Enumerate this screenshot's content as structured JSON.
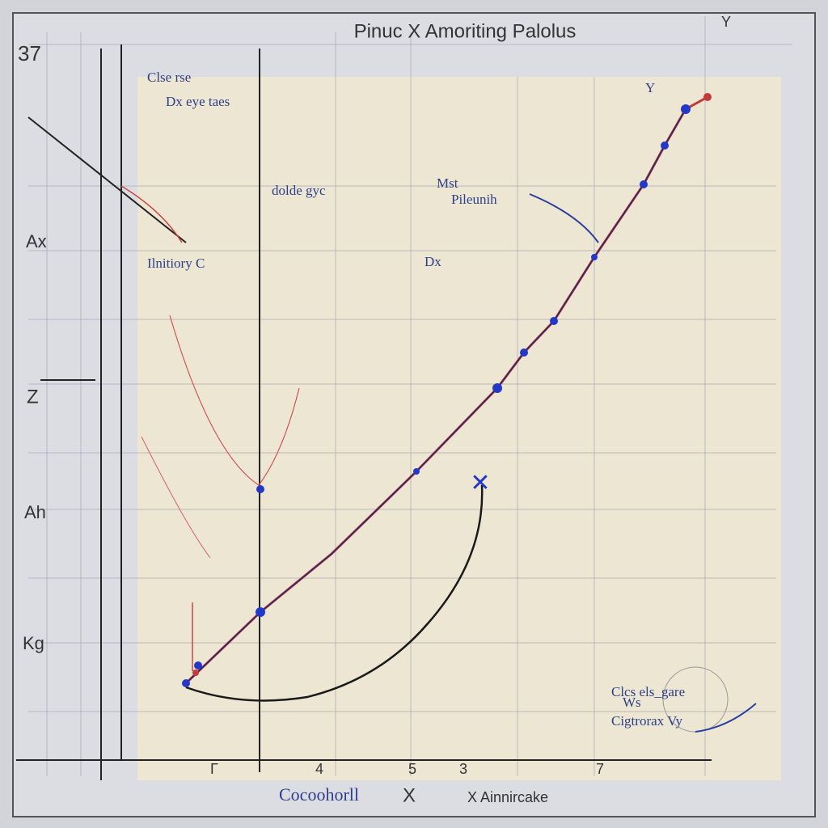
{
  "header": {
    "title": "Pinuc X Amoriting Palolus",
    "corner": "Y",
    "y_top": "37"
  },
  "annotations": [
    "Clse rse",
    "Dx eye taes",
    "dolde gyc",
    "Mst",
    "Pileunih",
    "Ilnitiory C",
    "Dx",
    "Y"
  ],
  "left_labels": [
    "Ax",
    "Z",
    "Ah",
    "Kg"
  ],
  "x_labels": [
    "Γ",
    "4",
    "5",
    "3",
    "7"
  ],
  "footer": {
    "x_title": "Cocoohorll",
    "x_mark": "X",
    "x_note": "X Ainnircake"
  },
  "legend": {
    "line1": "Clcs els_gare",
    "line2": "Ws",
    "line3": "Cigtrorax Vy"
  }
}
